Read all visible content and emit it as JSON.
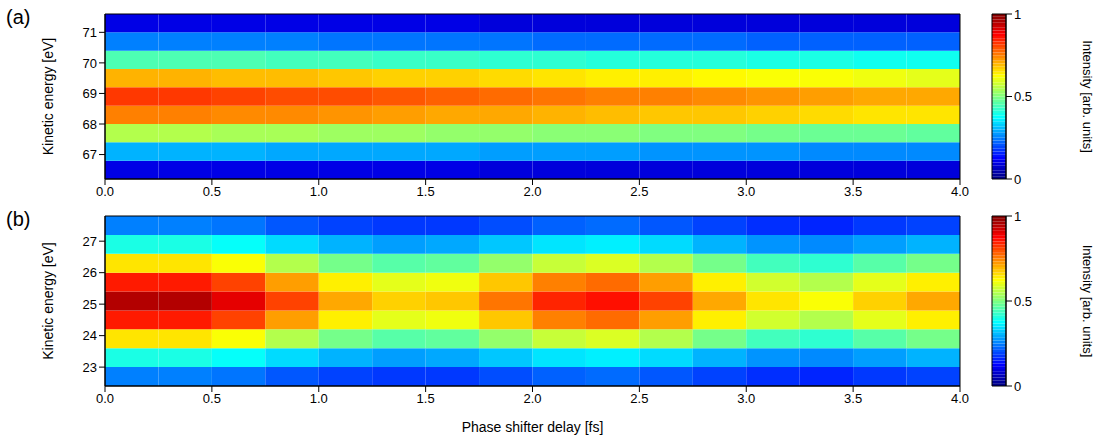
{
  "chart_data": [
    {
      "type": "heatmap",
      "panel_label": "(a)",
      "ylabel": "Kinetic energy [eV]",
      "xlim": [
        0,
        4
      ],
      "xticks": [
        {
          "value": 0,
          "label": "0.0"
        },
        0.5,
        {
          "value": 1,
          "label": "1.0"
        },
        1.5,
        {
          "value": 2,
          "label": "2.0"
        },
        2.5,
        {
          "value": 3,
          "label": "3.0"
        },
        3.5,
        {
          "value": 4,
          "label": "4.0"
        }
      ],
      "ylim": [
        66.2,
        71.6
      ],
      "yticks": [
        67,
        68,
        69,
        70,
        71
      ],
      "x_bins": [
        0,
        0.25,
        0.5,
        0.75,
        1,
        1.25,
        1.5,
        1.75,
        2,
        2.25,
        2.5,
        2.75,
        3,
        3.25,
        3.5,
        3.75,
        4
      ],
      "y_bins": [
        66.2,
        66.8,
        67.4,
        68.0,
        68.6,
        69.2,
        69.8,
        70.4,
        71.0,
        71.6
      ],
      "cells": [
        [
          0.1,
          0.1,
          0.1,
          0.1,
          0.1,
          0.1,
          0.1,
          0.09,
          0.09,
          0.09,
          0.09,
          0.09,
          0.09,
          0.09,
          0.09,
          0.09
        ],
        [
          0.3,
          0.3,
          0.3,
          0.29,
          0.29,
          0.29,
          0.29,
          0.28,
          0.28,
          0.28,
          0.27,
          0.27,
          0.27,
          0.26,
          0.26,
          0.26
        ],
        [
          0.55,
          0.55,
          0.54,
          0.54,
          0.53,
          0.53,
          0.52,
          0.52,
          0.51,
          0.51,
          0.5,
          0.5,
          0.49,
          0.48,
          0.48,
          0.47
        ],
        [
          0.75,
          0.75,
          0.74,
          0.74,
          0.73,
          0.72,
          0.71,
          0.71,
          0.7,
          0.69,
          0.68,
          0.68,
          0.67,
          0.66,
          0.65,
          0.65
        ],
        [
          0.82,
          0.82,
          0.81,
          0.8,
          0.8,
          0.79,
          0.78,
          0.77,
          0.76,
          0.75,
          0.75,
          0.74,
          0.73,
          0.72,
          0.71,
          0.71
        ],
        [
          0.7,
          0.7,
          0.69,
          0.69,
          0.68,
          0.67,
          0.67,
          0.66,
          0.65,
          0.64,
          0.64,
          0.63,
          0.62,
          0.62,
          0.61,
          0.6
        ],
        [
          0.45,
          0.45,
          0.45,
          0.44,
          0.44,
          0.43,
          0.43,
          0.42,
          0.42,
          0.41,
          0.41,
          0.41,
          0.4,
          0.4,
          0.39,
          0.39
        ],
        [
          0.25,
          0.25,
          0.25,
          0.25,
          0.24,
          0.24,
          0.24,
          0.24,
          0.23,
          0.23,
          0.23,
          0.23,
          0.22,
          0.22,
          0.22,
          0.22
        ],
        [
          0.1,
          0.1,
          0.1,
          0.1,
          0.1,
          0.1,
          0.1,
          0.09,
          0.09,
          0.09,
          0.09,
          0.09,
          0.09,
          0.09,
          0.09,
          0.09
        ]
      ],
      "colorbar_label": "Intensity [arb. units]",
      "colorbar_range": [
        0,
        1
      ],
      "colorbar_ticks": [
        0,
        0.5,
        1
      ]
    },
    {
      "type": "heatmap",
      "panel_label": "(b)",
      "ylabel": "Kinetic energy [eV]",
      "xlabel": "Phase shifter delay [fs]",
      "xlim": [
        0,
        4
      ],
      "xticks": [
        {
          "value": 0,
          "label": "0.0"
        },
        0.5,
        {
          "value": 1,
          "label": "1.0"
        },
        1.5,
        {
          "value": 2,
          "label": "2.0"
        },
        2.5,
        {
          "value": 3,
          "label": "3.0"
        },
        3.5,
        {
          "value": 4,
          "label": "4.0"
        }
      ],
      "ylim": [
        22.4,
        27.8
      ],
      "yticks": [
        23,
        24,
        25,
        26,
        27
      ],
      "x_bins": [
        0,
        0.25,
        0.5,
        0.75,
        1,
        1.25,
        1.5,
        1.75,
        2,
        2.25,
        2.5,
        2.75,
        3,
        3.25,
        3.5,
        3.75,
        4
      ],
      "y_bins": [
        22.4,
        23.0,
        23.6,
        24.2,
        24.8,
        25.4,
        26.0,
        26.6,
        27.2,
        27.8
      ],
      "cells": [
        [
          0.25,
          0.25,
          0.24,
          0.21,
          0.19,
          0.18,
          0.18,
          0.2,
          0.22,
          0.23,
          0.21,
          0.19,
          0.17,
          0.16,
          0.18,
          0.19
        ],
        [
          0.4,
          0.4,
          0.38,
          0.34,
          0.3,
          0.28,
          0.29,
          0.32,
          0.35,
          0.36,
          0.34,
          0.3,
          0.27,
          0.26,
          0.28,
          0.3
        ],
        [
          0.65,
          0.65,
          0.62,
          0.55,
          0.49,
          0.46,
          0.47,
          0.52,
          0.57,
          0.59,
          0.55,
          0.49,
          0.44,
          0.42,
          0.46,
          0.49
        ],
        [
          0.85,
          0.85,
          0.81,
          0.72,
          0.64,
          0.6,
          0.61,
          0.68,
          0.75,
          0.77,
          0.72,
          0.64,
          0.58,
          0.55,
          0.6,
          0.64
        ],
        [
          0.95,
          0.95,
          0.9,
          0.81,
          0.71,
          0.67,
          0.68,
          0.76,
          0.84,
          0.86,
          0.81,
          0.71,
          0.65,
          0.62,
          0.67,
          0.71
        ],
        [
          0.85,
          0.85,
          0.81,
          0.72,
          0.64,
          0.6,
          0.61,
          0.68,
          0.75,
          0.77,
          0.72,
          0.64,
          0.58,
          0.55,
          0.6,
          0.64
        ],
        [
          0.65,
          0.65,
          0.62,
          0.55,
          0.49,
          0.46,
          0.47,
          0.52,
          0.57,
          0.59,
          0.55,
          0.49,
          0.44,
          0.42,
          0.46,
          0.49
        ],
        [
          0.4,
          0.4,
          0.38,
          0.34,
          0.3,
          0.28,
          0.29,
          0.32,
          0.35,
          0.36,
          0.34,
          0.3,
          0.27,
          0.26,
          0.28,
          0.3
        ],
        [
          0.25,
          0.25,
          0.24,
          0.21,
          0.19,
          0.18,
          0.18,
          0.2,
          0.22,
          0.23,
          0.21,
          0.19,
          0.17,
          0.16,
          0.18,
          0.19
        ]
      ],
      "colorbar_label": "Intensity [arb. units]",
      "colorbar_range": [
        0,
        1
      ],
      "colorbar_ticks": [
        0,
        0.5,
        1
      ]
    }
  ]
}
